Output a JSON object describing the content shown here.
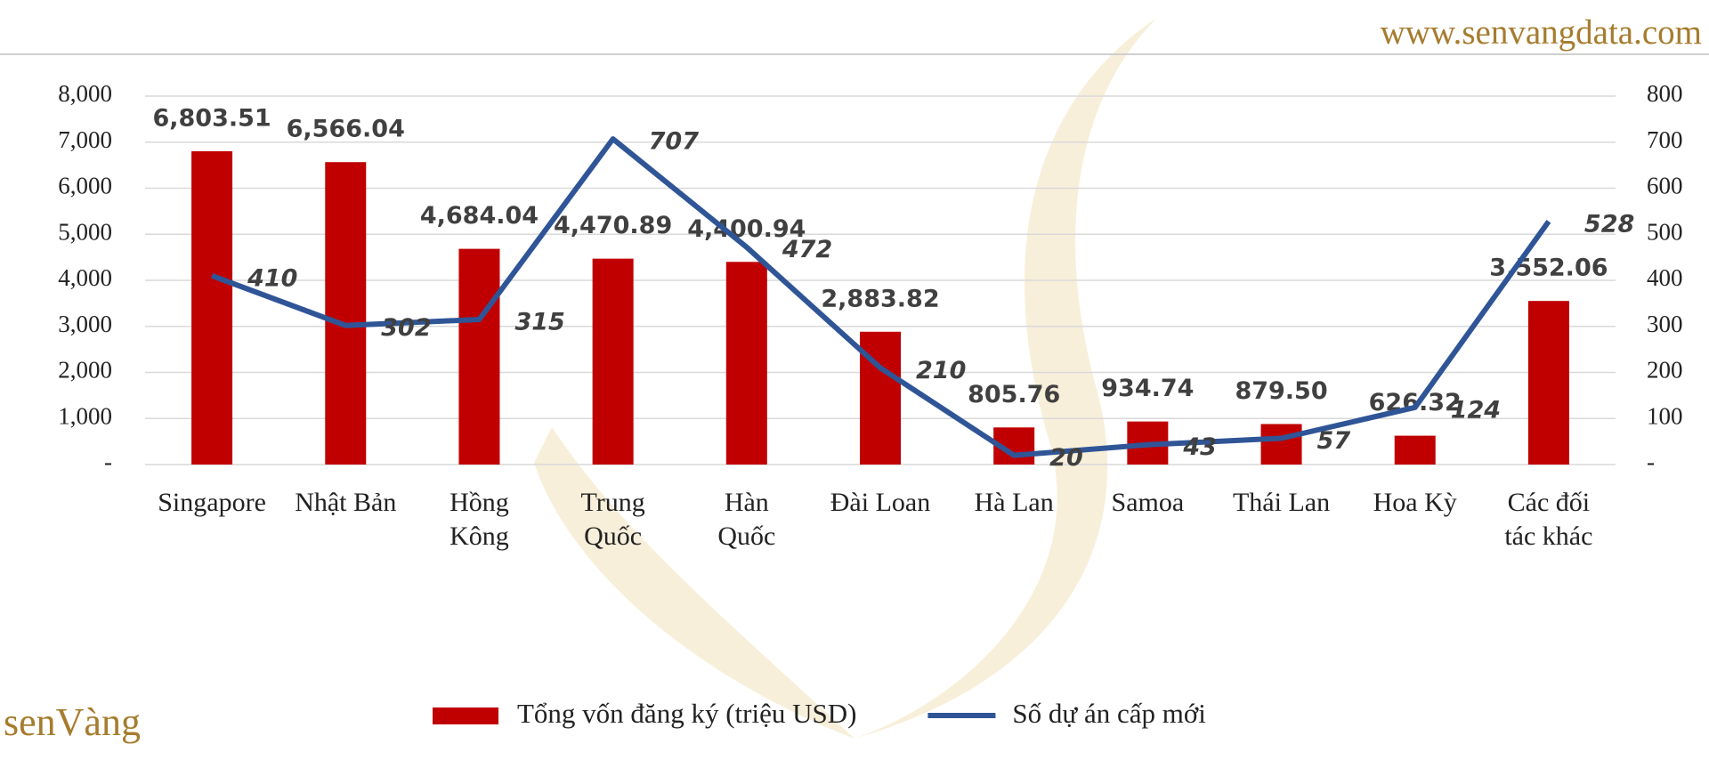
{
  "chart_data": {
    "type": "bar",
    "categories": [
      "Singapore",
      "Nhật Bản",
      "Hồng\nKông",
      "Trung\nQuốc",
      "Hàn\nQuốc",
      "Đài Loan",
      "Hà Lan",
      "Samoa",
      "Thái Lan",
      "Hoa Kỳ",
      "Các đối\ntác khác"
    ],
    "series": [
      {
        "name": "Tổng vốn đăng ký (triệu USD)",
        "type": "bar",
        "color": "#c00000",
        "values": [
          6803.51,
          6566.04,
          4684.04,
          4470.89,
          4400.94,
          2883.82,
          805.76,
          934.74,
          879.5,
          626.32,
          3552.06
        ],
        "value_labels": [
          "6,803.51",
          "6,566.04",
          "4,684.04",
          "4,470.89",
          "4,400.94",
          "2,883.82",
          "805.76",
          "934.74",
          "879.50",
          "626.32",
          "3,552.06"
        ]
      },
      {
        "name": "Số dự án cấp mới",
        "type": "line",
        "axis": "y2",
        "color": "#2f5597",
        "values": [
          410,
          302,
          315,
          707,
          472,
          210,
          20,
          43,
          57,
          124,
          528
        ]
      }
    ],
    "ylim": [
      0,
      8000
    ],
    "yticks": [
      {
        "value": 0,
        "label": "-"
      },
      {
        "value": 1000,
        "label": "1,000"
      },
      {
        "value": 2000,
        "label": "2,000"
      },
      {
        "value": 3000,
        "label": "3,000"
      },
      {
        "value": 4000,
        "label": "4,000"
      },
      {
        "value": 5000,
        "label": "5,000"
      },
      {
        "value": 6000,
        "label": "6,000"
      },
      {
        "value": 7000,
        "label": "7,000"
      },
      {
        "value": 8000,
        "label": "8,000"
      }
    ],
    "y2lim": [
      0,
      800
    ],
    "y2ticks": [
      {
        "value": 0,
        "label": "-"
      },
      100,
      200,
      300,
      400,
      500,
      600,
      700,
      800
    ],
    "grid": true,
    "legend": "bottom"
  },
  "watermark": {
    "site": "www.senvangdata.com",
    "logo": "senVàng"
  }
}
